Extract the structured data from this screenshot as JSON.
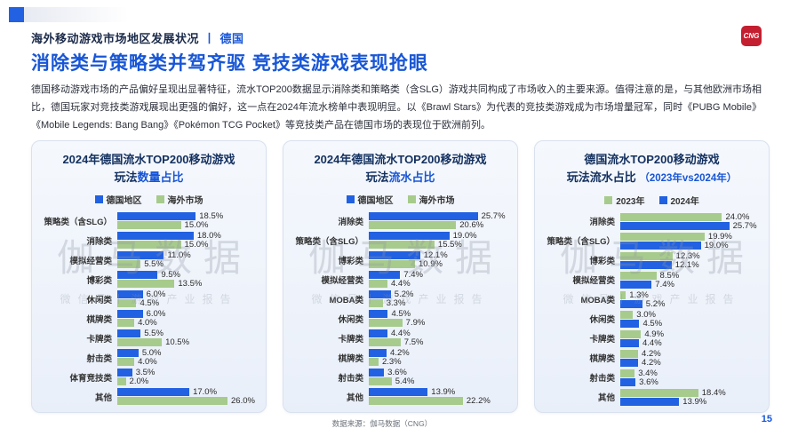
{
  "page": {
    "section_title": "海外移动游戏市场地区发展状况",
    "section_divider": "丨",
    "section_region": "德国",
    "logo": "CNG",
    "main_title": "消除类与策略类并驾齐驱 竞技类游戏表现抢眼",
    "paragraph": "德国移动游戏市场的产品偏好呈现出显著特征，流水TOP200数据显示消除类和策略类（含SLG）游戏共同构成了市场收入的主要来源。值得注意的是，与其他欧洲市场相比，德国玩家对竞技类游戏展现出更强的偏好，这一点在2024年流水榜单中表现明显。以《Brawl Stars》为代表的竞技类游戏成为市场增量冠军，同时《PUBG Mobile》《Mobile Legends: Bang Bang》《Pokémon TCG Pocket》等竞技类产品在德国市场的表现位于欧洲前列。",
    "source": "数据来源：伽马数据（CNG）",
    "page_number": "15",
    "watermark_main": "伽马数据",
    "watermark_sub": "微信号丨游戏产业报告"
  },
  "colors": {
    "accent_blue": "#1856d6",
    "bar_blue": "#2161e2",
    "bar_green": "#a7cb8c",
    "logo_red": "#c41f30",
    "panel_title_navy": "#13305f"
  },
  "chart_data": [
    {
      "type": "bar",
      "orientation": "horizontal",
      "title_line1": "2024年德国流水TOP200移动游戏",
      "title_line2_dark": "玩法",
      "title_line2_highlight": "数量占比",
      "legend": [
        {
          "label": "德国地区",
          "color": "#2161e2"
        },
        {
          "label": "海外市场",
          "color": "#a7cb8c"
        }
      ],
      "categories": [
        "策略类（含SLG）",
        "消除类",
        "模拟经营类",
        "博彩类",
        "休闲类",
        "棋牌类",
        "卡牌类",
        "射击类",
        "体育竞技类",
        "其他"
      ],
      "series": [
        {
          "name": "德国地区",
          "color": "#2161e2",
          "values": [
            18.5,
            18.0,
            11.0,
            9.5,
            6.0,
            6.0,
            5.5,
            5.0,
            3.5,
            17.0
          ]
        },
        {
          "name": "海外市场",
          "color": "#a7cb8c",
          "values": [
            15.0,
            15.0,
            5.5,
            13.5,
            4.5,
            4.0,
            10.5,
            4.0,
            2.0,
            26.0
          ]
        }
      ],
      "unit": "%",
      "xmax": 26,
      "grid": false,
      "legend_position": "top"
    },
    {
      "type": "bar",
      "orientation": "horizontal",
      "title_line1": "2024年德国流水TOP200移动游戏",
      "title_line2_dark": "玩法",
      "title_line2_highlight": "流水占比",
      "legend": [
        {
          "label": "德国地区",
          "color": "#2161e2"
        },
        {
          "label": "海外市场",
          "color": "#a7cb8c"
        }
      ],
      "categories": [
        "消除类",
        "策略类（含SLG）",
        "博彩类",
        "模拟经营类",
        "MOBA类",
        "休闲类",
        "卡牌类",
        "棋牌类",
        "射击类",
        "其他"
      ],
      "series": [
        {
          "name": "德国地区",
          "color": "#2161e2",
          "values": [
            25.7,
            19.0,
            12.1,
            7.4,
            5.2,
            4.5,
            4.4,
            4.2,
            3.6,
            13.9
          ]
        },
        {
          "name": "海外市场",
          "color": "#a7cb8c",
          "values": [
            20.6,
            15.5,
            10.9,
            4.4,
            3.3,
            7.9,
            7.5,
            2.3,
            5.4,
            22.2
          ]
        }
      ],
      "unit": "%",
      "xmax": 26,
      "grid": false,
      "legend_position": "top"
    },
    {
      "type": "bar",
      "orientation": "horizontal",
      "title_line1": "德国流水TOP200移动游戏",
      "title_line2_dark": "玩法流水占比 ",
      "title_line2_highlight": "（2023年vs2024年）",
      "highlight_small": true,
      "legend": [
        {
          "label": "2023年",
          "color": "#a7cb8c"
        },
        {
          "label": "2024年",
          "color": "#2161e2"
        }
      ],
      "categories": [
        "消除类",
        "策略类（含SLG）",
        "博彩类",
        "模拟经营类",
        "MOBA类",
        "休闲类",
        "卡牌类",
        "棋牌类",
        "射击类",
        "其他"
      ],
      "series": [
        {
          "name": "2023年",
          "color": "#a7cb8c",
          "values": [
            24.0,
            19.9,
            12.3,
            8.5,
            1.3,
            3.0,
            4.9,
            4.2,
            3.4,
            18.4
          ]
        },
        {
          "name": "2024年",
          "color": "#2161e2",
          "values": [
            25.7,
            19.0,
            12.1,
            7.4,
            5.2,
            4.5,
            4.4,
            4.2,
            3.6,
            13.9
          ]
        }
      ],
      "unit": "%",
      "xmax": 26,
      "grid": false,
      "legend_position": "top"
    }
  ]
}
